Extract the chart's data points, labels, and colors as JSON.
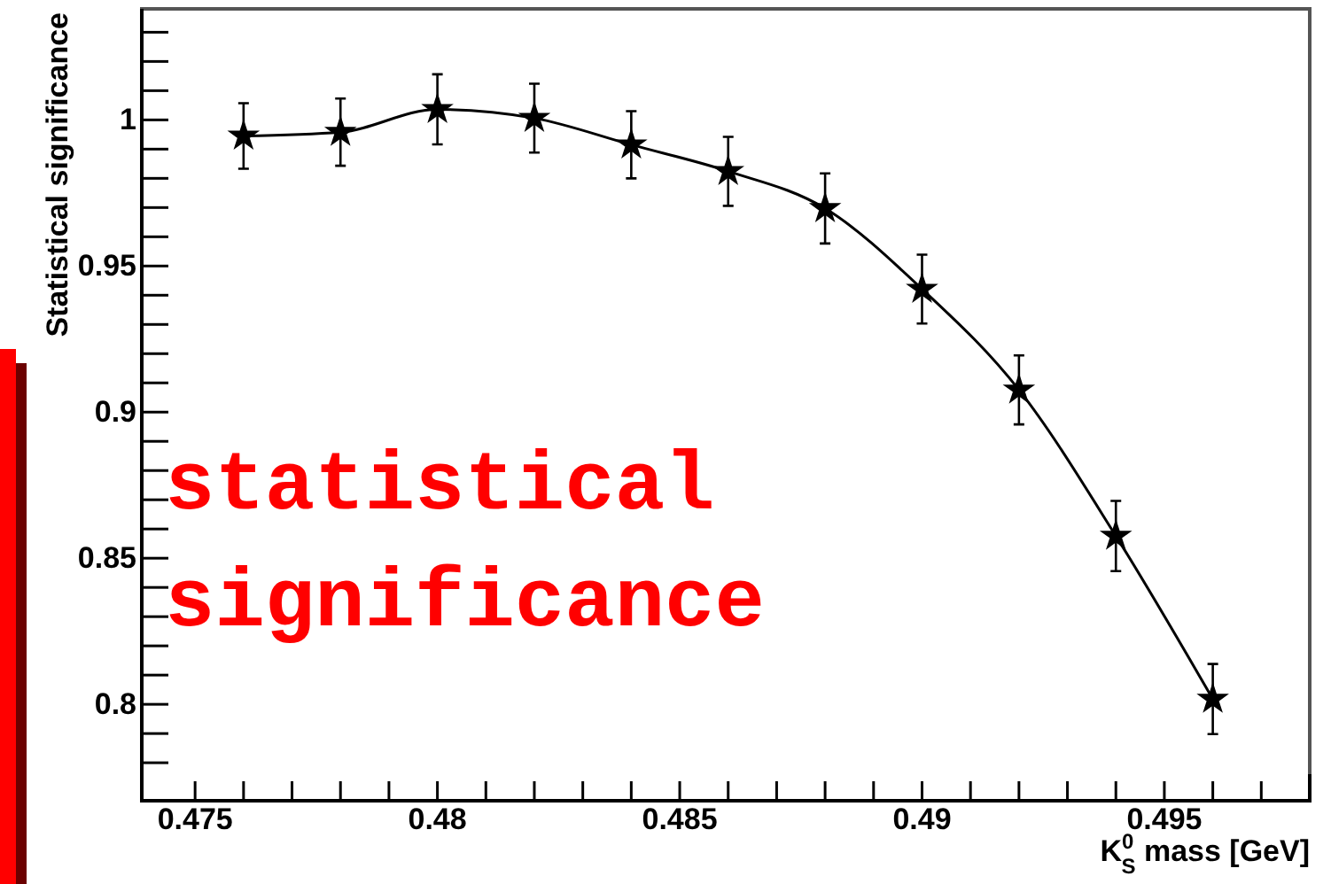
{
  "chart_data": {
    "type": "line",
    "ylabel": "Statistical significance",
    "xlabel": "K$^{0}$$_{S}$ mass [GeV]",
    "annotations": [
      "statistical significance"
    ],
    "x": [
      0.476,
      0.478,
      0.48,
      0.482,
      0.484,
      0.486,
      0.488,
      0.49,
      0.492,
      0.494,
      0.496
    ],
    "series": [
      {
        "color": "#000000",
        "values": [
          0.9945,
          0.9958,
          1.0036,
          1.0006,
          0.9915,
          0.9824,
          0.9697,
          0.9421,
          0.9076,
          0.8576,
          0.8018
        ],
        "errors": [
          0.0112,
          0.0115,
          0.012,
          0.0118,
          0.0115,
          0.0118,
          0.012,
          0.0118,
          0.0118,
          0.012,
          0.012
        ]
      }
    ],
    "marker": "star",
    "line_style": "solid",
    "grid": false,
    "xlim": [
      0.4739,
      0.498
    ],
    "ylim": [
      0.767,
      1.038
    ],
    "xticks": [
      0.475,
      {
        "value": 0.476,
        "label": null
      },
      {
        "value": 0.477,
        "label": null
      },
      {
        "value": 0.478,
        "label": null
      },
      {
        "value": 0.479,
        "label": null
      },
      0.48,
      {
        "value": 0.481,
        "label": null
      },
      {
        "value": 0.482,
        "label": null
      },
      {
        "value": 0.483,
        "label": null
      },
      {
        "value": 0.484,
        "label": null
      },
      0.485,
      {
        "value": 0.486,
        "label": null
      },
      {
        "value": 0.487,
        "label": null
      },
      {
        "value": 0.488,
        "label": null
      },
      {
        "value": 0.489,
        "label": null
      },
      0.49,
      {
        "value": 0.491,
        "label": null
      },
      {
        "value": 0.492,
        "label": null
      },
      {
        "value": 0.493,
        "label": null
      },
      {
        "value": 0.494,
        "label": null
      },
      0.495,
      {
        "value": 0.496,
        "label": null
      },
      {
        "value": 0.497,
        "label": null
      }
    ],
    "yticks": [
      {
        "value": 0.78,
        "label": null
      },
      {
        "value": 0.79,
        "label": null
      },
      0.8,
      {
        "value": 0.81,
        "label": null
      },
      {
        "value": 0.82,
        "label": null
      },
      {
        "value": 0.83,
        "label": null
      },
      {
        "value": 0.84,
        "label": null
      },
      0.85,
      {
        "value": 0.86,
        "label": null
      },
      {
        "value": 0.87,
        "label": null
      },
      {
        "value": 0.88,
        "label": null
      },
      {
        "value": 0.89,
        "label": null
      },
      0.9,
      {
        "value": 0.91,
        "label": null
      },
      {
        "value": 0.92,
        "label": null
      },
      {
        "value": 0.93,
        "label": null
      },
      {
        "value": 0.94,
        "label": null
      },
      0.95,
      {
        "value": 0.96,
        "label": null
      },
      {
        "value": 0.97,
        "label": null
      },
      {
        "value": 0.98,
        "label": null
      },
      {
        "value": 0.99,
        "label": null
      },
      1,
      {
        "value": 1.01,
        "label": null
      },
      {
        "value": 1.02,
        "label": null
      },
      {
        "value": 1.03,
        "label": null
      }
    ]
  }
}
